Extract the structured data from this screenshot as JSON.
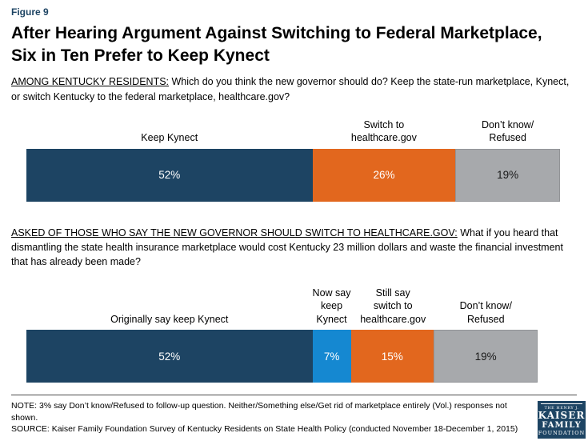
{
  "figure_label": "Figure 9",
  "title": "After Hearing Argument Against Switching to Federal Marketplace, Six in Ten Prefer to Keep Kynect",
  "colors": {
    "navy": "#1d4463",
    "orange": "#e2671e",
    "gray": "#a7a9ac",
    "blue": "#1588d1",
    "logo_navy": "#1d4463"
  },
  "chart_data": [
    {
      "type": "bar",
      "orientation": "horizontal-stacked",
      "question_lead": "AMONG KENTUCKY RESIDENTS:",
      "question_text": " Which do you think the new governor should do? Keep the state-run marketplace, Kynect, or switch Kentucky to the federal marketplace, healthcare.gov?",
      "unit": "%",
      "axis_scale_total": 97,
      "segments": [
        {
          "label": "Keep Kynect",
          "value": 52,
          "display": "52%",
          "color": "#1d4463",
          "text_color": "#ffffff"
        },
        {
          "label": "Switch to\nhealthcare.gov",
          "value": 26,
          "display": "26%",
          "color": "#e2671e",
          "text_color": "#ffffff"
        },
        {
          "label": "Don’t know/\nRefused",
          "value": 19,
          "display": "19%",
          "color": "#a7a9ac",
          "text_color": "#1a1a1a"
        }
      ]
    },
    {
      "type": "bar",
      "orientation": "horizontal-stacked",
      "question_lead": "ASKED OF THOSE WHO SAY THE NEW GOVERNOR SHOULD SWITCH TO HEALTHCARE.GOV:",
      "question_text": " What if you heard that dismantling the state health insurance marketplace would cost Kentucky 23 million dollars and waste the financial investment that has already been made?",
      "unit": "%",
      "axis_scale_total": 97,
      "segments": [
        {
          "label": "Originally say keep Kynect",
          "value": 52,
          "display": "52%",
          "color": "#1d4463",
          "text_color": "#ffffff"
        },
        {
          "label": "Now say\nkeep\nKynect",
          "value": 7,
          "display": "7%",
          "color": "#1588d1",
          "text_color": "#ffffff"
        },
        {
          "label": "Still say\nswitch to\nhealthcare.gov",
          "value": 15,
          "display": "15%",
          "color": "#e2671e",
          "text_color": "#ffffff"
        },
        {
          "label": "Don’t know/\nRefused",
          "value": 19,
          "display": "19%",
          "color": "#a7a9ac",
          "text_color": "#1a1a1a"
        }
      ]
    }
  ],
  "footer": {
    "note": "NOTE: 3% say Don’t know/Refused to follow-up question. Neither/Something else/Get rid of marketplace entirely (Vol.) responses not shown.",
    "source": "SOURCE: Kaiser Family Foundation Survey of Kentucky Residents on State Health Policy (conducted November 18-December 1, 2015)"
  },
  "logo": {
    "line1": "THE HENRY J.",
    "line2": "KAISER",
    "line3": "FAMILY",
    "line4": "FOUNDATION"
  }
}
